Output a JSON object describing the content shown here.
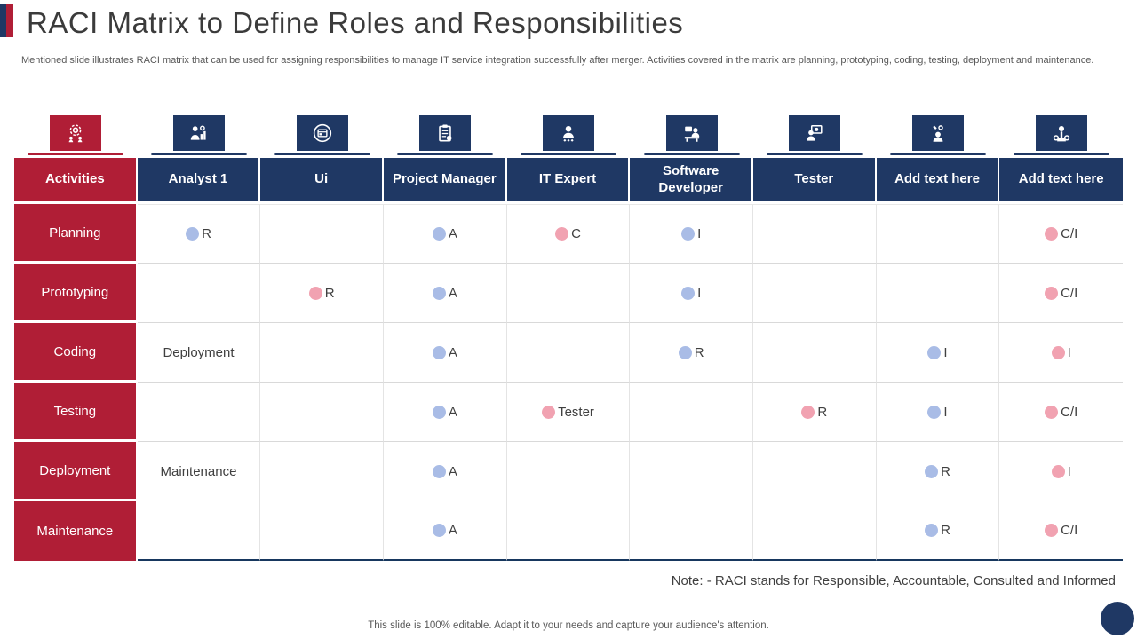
{
  "colors": {
    "accent_red": "#B01E36",
    "accent_navy": "#1F3864",
    "dot_blue": "#A9BCE6",
    "dot_pink": "#F1A2B1"
  },
  "slide": {
    "title": "RACI Matrix to Define Roles and Responsibilities",
    "subtitle": "Mentioned slide illustrates RACI matrix that can be used for assigning responsibilities to manage IT service integration successfully after merger. Activities covered in the matrix are planning, prototyping, coding, testing, deployment and maintenance.",
    "note": "Note: - RACI stands for Responsible, Accountable, Consulted and Informed",
    "footer": "This slide is 100% editable. Adapt it to your needs and capture your audience's attention."
  },
  "table": {
    "columns": [
      {
        "label": "Activities",
        "icon": "gear-icon",
        "accent": "red"
      },
      {
        "label": "Analyst 1",
        "icon": "analyst-chart-icon",
        "accent": "navy"
      },
      {
        "label": "Ui",
        "icon": "browser-window-icon",
        "accent": "navy"
      },
      {
        "label": "Project Manager",
        "icon": "clipboard-icon",
        "accent": "navy"
      },
      {
        "label": "IT Expert",
        "icon": "person-stars-icon",
        "accent": "navy"
      },
      {
        "label": "Software Developer",
        "icon": "developer-desk-icon",
        "accent": "navy"
      },
      {
        "label": "Tester",
        "icon": "tester-monitor-icon",
        "accent": "navy"
      },
      {
        "label": "Add text here",
        "icon": "person-tools-icon",
        "accent": "navy"
      },
      {
        "label": "Add text here",
        "icon": "person-gears-icon",
        "accent": "navy"
      }
    ],
    "rows": [
      {
        "activity": "Planning",
        "cells": [
          {
            "dot": "blue",
            "text": "R"
          },
          {},
          {
            "dot": "blue",
            "text": "A"
          },
          {
            "dot": "pink",
            "text": "C"
          },
          {
            "dot": "blue",
            "text": "I"
          },
          {},
          {},
          {
            "dot": "pink",
            "text": "C/I"
          }
        ]
      },
      {
        "activity": "Prototyping",
        "cells": [
          {},
          {
            "dot": "pink",
            "text": "R"
          },
          {
            "dot": "blue",
            "text": "A"
          },
          {},
          {
            "dot": "blue",
            "text": "I"
          },
          {},
          {},
          {
            "dot": "pink",
            "text": "C/I"
          }
        ]
      },
      {
        "activity": "Coding",
        "cells": [
          {
            "text": "Deployment"
          },
          {},
          {
            "dot": "blue",
            "text": "A"
          },
          {},
          {
            "dot": "blue",
            "text": "R"
          },
          {},
          {
            "dot": "blue",
            "text": "I"
          },
          {
            "dot": "pink",
            "text": "I"
          }
        ]
      },
      {
        "activity": "Testing",
        "cells": [
          {},
          {},
          {
            "dot": "blue",
            "text": "A"
          },
          {
            "dot": "pink",
            "text": "Tester"
          },
          {},
          {
            "dot": "pink",
            "text": "R"
          },
          {
            "dot": "blue",
            "text": "I"
          },
          {
            "dot": "pink",
            "text": "C/I"
          }
        ]
      },
      {
        "activity": "Deployment",
        "cells": [
          {
            "text": "Maintenance"
          },
          {},
          {
            "dot": "blue",
            "text": "A"
          },
          {},
          {},
          {},
          {
            "dot": "blue",
            "text": "R"
          },
          {
            "dot": "pink",
            "text": "I"
          }
        ]
      },
      {
        "activity": "Maintenance",
        "cells": [
          {},
          {},
          {
            "dot": "blue",
            "text": "A"
          },
          {},
          {},
          {},
          {
            "dot": "blue",
            "text": "R"
          },
          {
            "dot": "pink",
            "text": "C/I"
          }
        ]
      }
    ]
  }
}
